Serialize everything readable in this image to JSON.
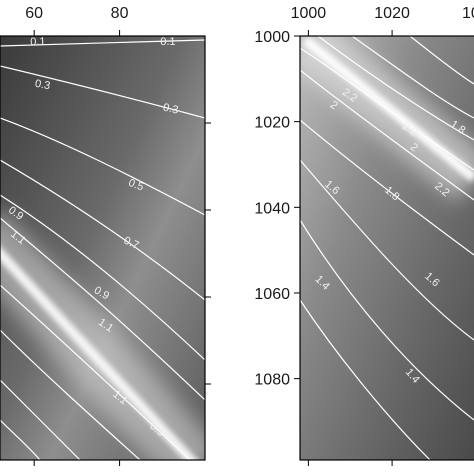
{
  "chart_data": [
    {
      "type": "heatmap",
      "panel": "left",
      "x_ticks": [
        60,
        80
      ],
      "xlim": [
        52,
        100
      ],
      "ylim": [
        null,
        null
      ],
      "y_tick_marks_right": 4,
      "contour_levels": [
        0.1,
        0.3,
        0.5,
        0.7,
        0.9,
        1.1
      ],
      "contour_labels": [
        {
          "text": "0.1",
          "x": 61,
          "level": 0.1
        },
        {
          "text": "0.1",
          "x": 89,
          "level": 0.1
        },
        {
          "text": "0.3",
          "x": 61,
          "level": 0.3
        },
        {
          "text": "0.3",
          "x": 88,
          "level": 0.3
        },
        {
          "text": "0.5",
          "x": 80,
          "level": 0.5
        },
        {
          "text": "0.7",
          "x": 77,
          "level": 0.7
        },
        {
          "text": "0.9",
          "x": 54,
          "level": 0.9
        },
        {
          "text": "0.9",
          "x": 73,
          "level": 0.9
        },
        {
          "text": "1.1",
          "x": 55,
          "level": 1.1
        },
        {
          "text": "1.1",
          "x": 77,
          "level": 1.1
        },
        {
          "text": "1.1",
          "x": 71,
          "level": 1.1
        },
        {
          "text": "0.9",
          "x": 75,
          "level": 0.9
        }
      ],
      "colormap": "grayscale (bright ridge)"
    },
    {
      "type": "heatmap",
      "panel": "right",
      "x_ticks": [
        1000,
        1020
      ],
      "x_ticks_partial": [
        "10"
      ],
      "xlim": [
        998,
        1041
      ],
      "y_ticks": [
        1000,
        1020,
        1040,
        1060,
        1080
      ],
      "ylim": [
        1000,
        1099
      ],
      "contour_levels": [
        1.4,
        1.6,
        1.8,
        2,
        2.2
      ],
      "contour_labels": [
        {
          "text": "2.2",
          "x": 1016,
          "y": 1014
        },
        {
          "text": "2",
          "x": 1012,
          "y": 1015
        },
        {
          "text": "2.2",
          "x": 1024,
          "y": 1021
        },
        {
          "text": "2",
          "x": 1026,
          "y": 1022
        },
        {
          "text": "1.8",
          "x": 1034,
          "y": 1020
        },
        {
          "text": "2.2",
          "x": 1030,
          "y": 1033
        },
        {
          "text": "1.6",
          "x": 1006,
          "y": 1035
        },
        {
          "text": "1.8",
          "x": 1018,
          "y": 1038
        },
        {
          "text": "1.6",
          "x": 1028,
          "y": 1055
        },
        {
          "text": "1.4",
          "x": 1002,
          "y": 1065
        },
        {
          "text": "1.4",
          "x": 1024,
          "y": 1081
        }
      ],
      "colormap": "grayscale (bright ridge)"
    }
  ]
}
